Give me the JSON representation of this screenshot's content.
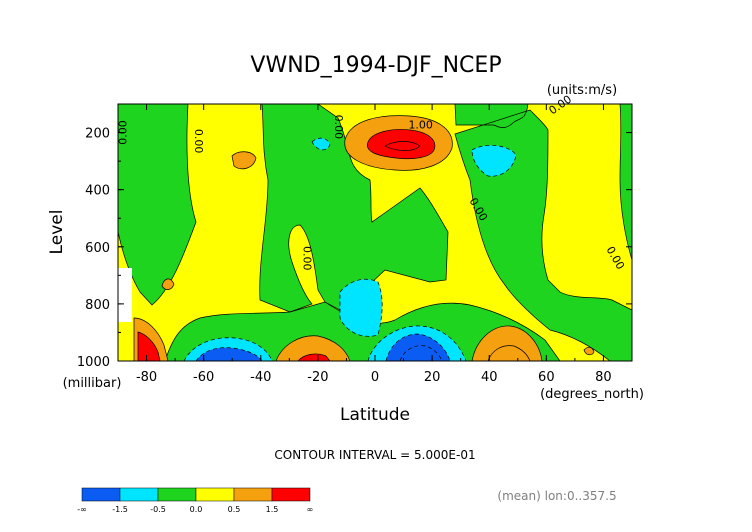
{
  "chart_data": {
    "type": "contour",
    "title": "VWND_1994-DJF_NCEP",
    "units_label": "(units:m/s)",
    "xlabel": "Latitude",
    "ylabel": "Level",
    "x_unit_label": "(degrees_north)",
    "y_unit_label": "(millibar)",
    "xlim": [
      -90,
      90
    ],
    "ylim": [
      1000,
      100
    ],
    "x_ticks": [
      -80,
      -60,
      -40,
      -20,
      0,
      20,
      40,
      60,
      80
    ],
    "y_ticks": [
      200,
      400,
      600,
      800,
      1000
    ],
    "x_tick_labels": [
      "-80",
      "-60",
      "-40",
      "-20",
      "0",
      "20",
      "40",
      "60",
      "80"
    ],
    "y_tick_labels": [
      "200",
      "400",
      "600",
      "800",
      "1000"
    ],
    "contour_interval_text": "CONTOUR INTERVAL = 5.000E-01",
    "footer_text": "(mean) lon:0..357.5",
    "contour_labels": [
      {
        "text": "0.00",
        "lat": -88,
        "level": 200,
        "angle": -90
      },
      {
        "text": "0.00",
        "lat": -62,
        "level": 230,
        "angle": 90
      },
      {
        "text": "0.00",
        "lat": -13,
        "level": 180,
        "angle": 90
      },
      {
        "text": "1.00",
        "lat": 16,
        "level": 175,
        "angle": 0
      },
      {
        "text": "0.00",
        "lat": 65,
        "level": 105,
        "angle": -35
      },
      {
        "text": "0.00",
        "lat": 36,
        "level": 470,
        "angle": 60
      },
      {
        "text": "0.00",
        "lat": -24,
        "level": 640,
        "angle": 90
      },
      {
        "text": "0.00",
        "lat": 84,
        "level": 640,
        "angle": 60
      }
    ],
    "colorbar": {
      "colors": [
        "#0b5cf2",
        "#00e5ff",
        "#1ed41e",
        "#ffff00",
        "#f5a00e",
        "#ff0000"
      ],
      "labels": [
        "-∞",
        "-1.5",
        "-0.5",
        "0.0",
        "0.5",
        "1.5",
        "∞"
      ]
    },
    "fill_colors": {
      "strong_negative": "#0b5cf2",
      "negative": "#00e5ff",
      "near_zero_negative": "#1ed41e",
      "near_zero_positive": "#ffff00",
      "positive": "#f5a00e",
      "strong_positive": "#ff0000"
    }
  }
}
